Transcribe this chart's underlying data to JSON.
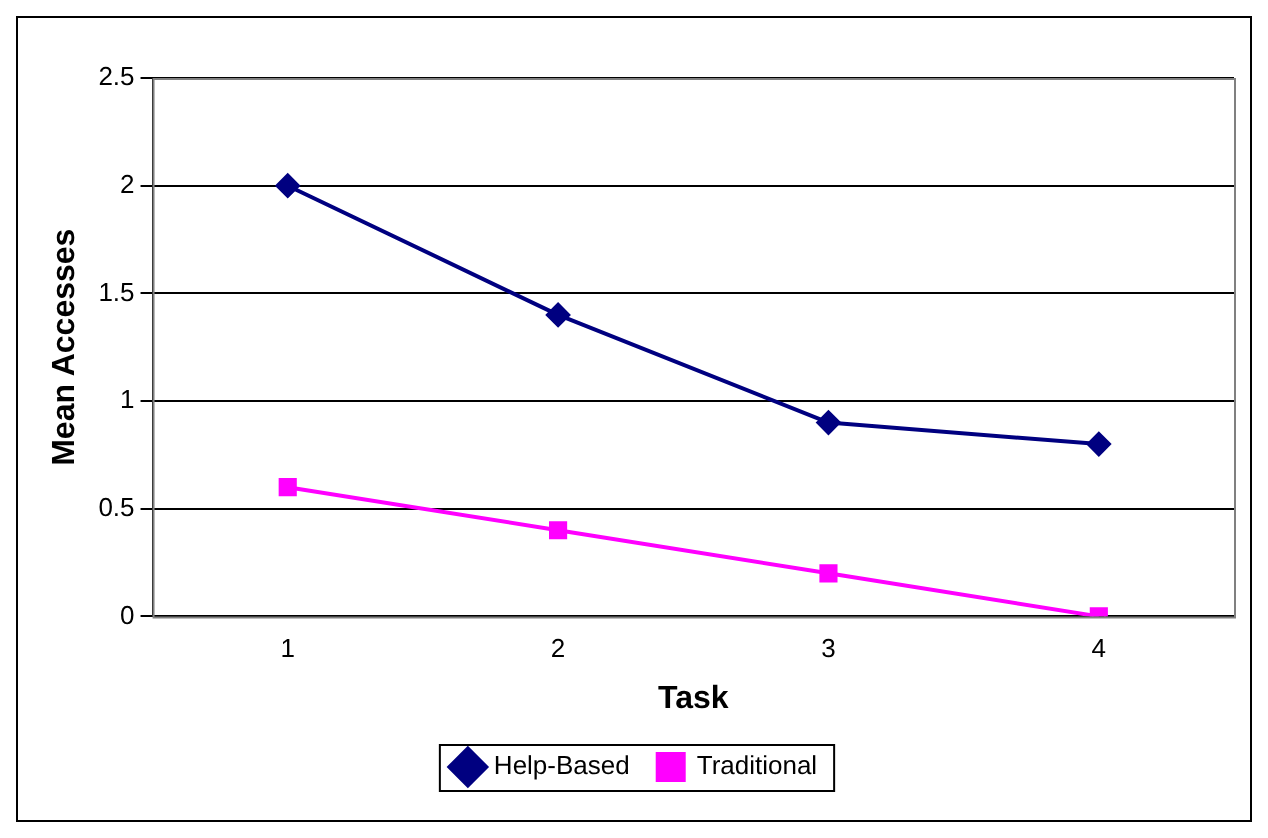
{
  "chart_data": {
    "type": "line",
    "xlabel": "Task",
    "ylabel": "Mean Accesses",
    "categories": [
      "1",
      "2",
      "3",
      "4"
    ],
    "series": [
      {
        "name": "Help-Based",
        "color": "#000080",
        "marker": "diamond",
        "values": [
          2,
          1.4,
          0.9,
          0.8
        ]
      },
      {
        "name": "Traditional",
        "color": "#ff00ff",
        "marker": "square",
        "values": [
          0.6,
          0.4,
          0.2,
          0
        ]
      }
    ],
    "ylim": [
      0,
      2.5
    ],
    "yticks": [
      0,
      0.5,
      1,
      1.5,
      2,
      2.5
    ],
    "grid": "y",
    "legend": "bottom",
    "line_style": "solid"
  }
}
